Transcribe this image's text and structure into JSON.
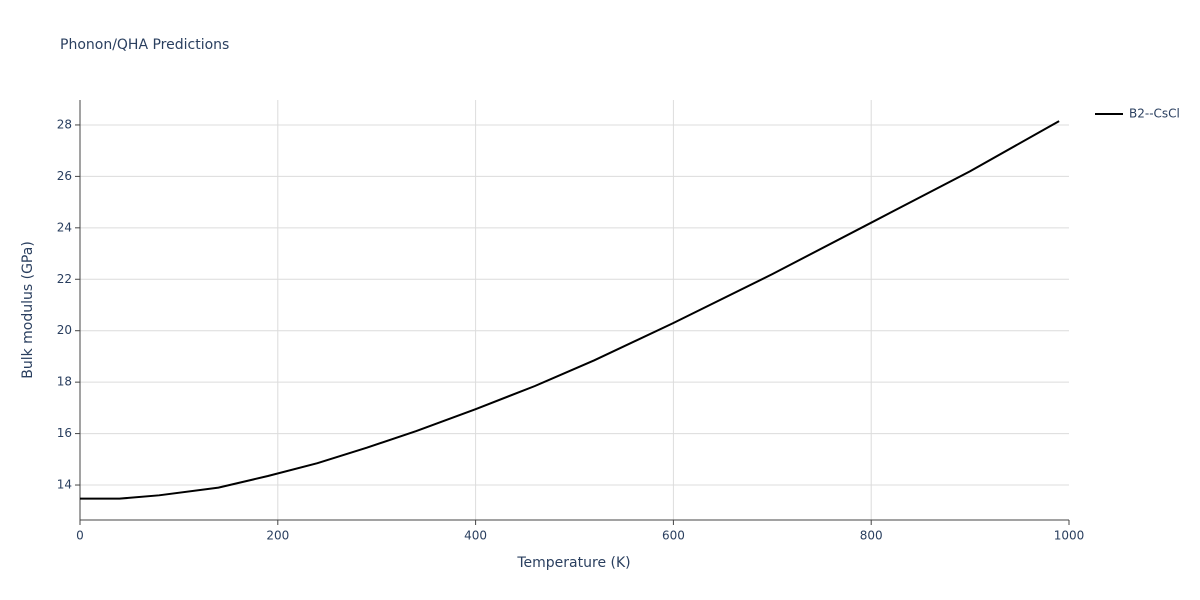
{
  "chart_data": {
    "type": "line",
    "title": "Phonon/QHA Predictions",
    "x_label": "Temperature (K)",
    "y_label": "Bulk modulus (GPa)",
    "x": [
      0,
      40,
      80,
      140,
      190,
      240,
      290,
      340,
      400,
      460,
      520,
      600,
      700,
      800,
      900,
      990
    ],
    "series": [
      {
        "name": "B2--CsCl",
        "color": "#000000",
        "values": [
          13.47,
          13.47,
          13.6,
          13.9,
          14.35,
          14.85,
          15.45,
          16.1,
          16.95,
          17.85,
          18.85,
          20.3,
          22.2,
          24.2,
          26.2,
          28.15
        ]
      }
    ],
    "xlim": [
      0,
      1000
    ],
    "xticks": [
      0,
      200,
      400,
      600,
      800,
      1000
    ],
    "ylim": [
      12.64,
      28.97
    ],
    "yticks": [
      14,
      16,
      18,
      20,
      22,
      24,
      26,
      28
    ],
    "grid": true,
    "legend": "right"
  }
}
